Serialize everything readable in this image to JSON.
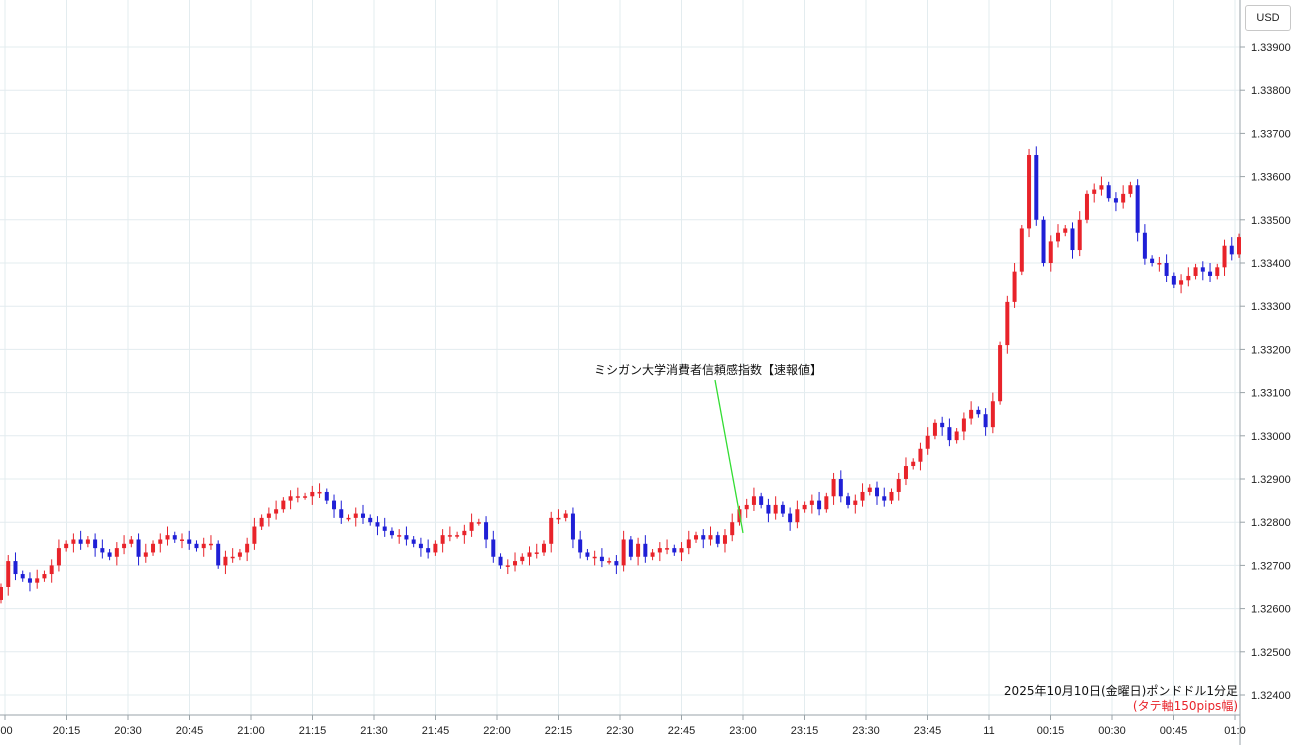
{
  "currency_label": "USD",
  "annotation": "ミシガン大学消費者信頼感指数【速報値】",
  "caption": {
    "line1": "2025年10月10日(金曜日)ポンドドル1分足",
    "line2": "(タテ軸150pips幅)"
  },
  "colors": {
    "up": "#e8232a",
    "down": "#1f1fd6",
    "annotation_line": "#33dd33",
    "grid": "#e3ecef"
  },
  "chart_data": {
    "type": "candlestick",
    "title": "",
    "y_ticks": [
      "1.32400",
      "1.32500",
      "1.32600",
      "1.32700",
      "1.32800",
      "1.32900",
      "1.33000",
      "1.33100",
      "1.33200",
      "1.33300",
      "1.33400",
      "1.33500",
      "1.33600",
      "1.33700",
      "1.33800",
      "1.33900"
    ],
    "x_ticks": [
      ":00",
      "20:15",
      "20:30",
      "20:45",
      "21:00",
      "21:15",
      "21:30",
      "21:45",
      "22:00",
      "22:15",
      "22:30",
      "22:45",
      "23:00",
      "23:15",
      "23:30",
      "23:45",
      "11",
      "00:15",
      "00:30",
      "00:45",
      "01:0"
    ],
    "ylim": [
      1.3236,
      1.3401
    ],
    "grid": true,
    "closes": [
      1.3265,
      1.3271,
      1.3268,
      1.3267,
      1.3266,
      1.3267,
      1.3268,
      1.327,
      1.3274,
      1.3275,
      1.3276,
      1.3275,
      1.3276,
      1.3274,
      1.3273,
      1.3272,
      1.3274,
      1.3275,
      1.3276,
      1.3272,
      1.3273,
      1.3275,
      1.3276,
      1.3277,
      1.3276,
      1.3276,
      1.3275,
      1.3274,
      1.3275,
      1.3275,
      1.327,
      1.3272,
      1.3272,
      1.3273,
      1.3275,
      1.3279,
      1.3281,
      1.3282,
      1.3283,
      1.3285,
      1.3286,
      1.3286,
      1.3286,
      1.3287,
      1.3287,
      1.3285,
      1.3283,
      1.3281,
      1.3281,
      1.3282,
      1.3281,
      1.328,
      1.3279,
      1.3278,
      1.3277,
      1.3277,
      1.3276,
      1.3275,
      1.3274,
      1.3273,
      1.3275,
      1.3277,
      1.3277,
      1.3277,
      1.3278,
      1.328,
      1.328,
      1.3276,
      1.3272,
      1.327,
      1.327,
      1.3271,
      1.3272,
      1.3273,
      1.3273,
      1.3275,
      1.3281,
      1.3281,
      1.3282,
      1.3276,
      1.3273,
      1.3272,
      1.3272,
      1.3271,
      1.3271,
      1.327,
      1.3276,
      1.3272,
      1.3275,
      1.3272,
      1.3273,
      1.3274,
      1.3274,
      1.3273,
      1.3274,
      1.3276,
      1.3277,
      1.3276,
      1.3277,
      1.3275,
      1.3277,
      1.328,
      1.3283,
      1.3284,
      1.3286,
      1.3284,
      1.3282,
      1.3284,
      1.3282,
      1.328,
      1.3283,
      1.3284,
      1.3285,
      1.3283,
      1.3286,
      1.329,
      1.3286,
      1.3284,
      1.3285,
      1.3287,
      1.3288,
      1.3286,
      1.3285,
      1.3287,
      1.329,
      1.3293,
      1.3294,
      1.3297,
      1.33,
      1.3303,
      1.3302,
      1.3299,
      1.3301,
      1.3304,
      1.3306,
      1.3305,
      1.3302,
      1.3308,
      1.3321,
      1.3331,
      1.3338,
      1.3348,
      1.3365,
      1.335,
      1.334,
      1.3345,
      1.3347,
      1.3348,
      1.3343,
      1.335,
      1.3356,
      1.3357,
      1.3358,
      1.3355,
      1.3354,
      1.3356,
      1.3358,
      1.3347,
      1.3341,
      1.334,
      1.334,
      1.3337,
      1.3335,
      1.3336,
      1.3337,
      1.3339,
      1.3338,
      1.3337,
      1.3339,
      1.3344,
      1.3342,
      1.3346
    ]
  }
}
